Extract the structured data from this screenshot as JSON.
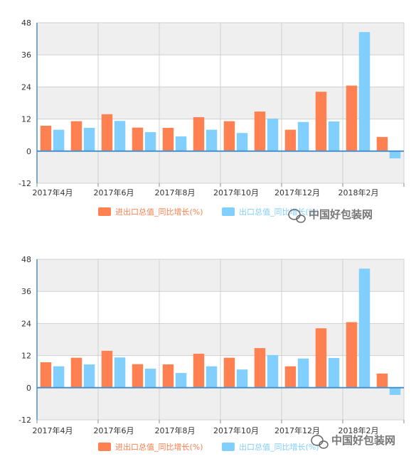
{
  "colors": {
    "import_export": "#FF8050",
    "export": "#80CFFF",
    "plot_bg_band": "#EFEFEF",
    "grid": "#D0D0D0",
    "axis": "#4A90C8"
  },
  "watermark": {
    "icon": "wechat-icon",
    "text": "中国好包装网"
  },
  "chart_data": [
    {
      "type": "bar",
      "categories": [
        "2017年4月",
        "2017年5月",
        "2017年6月",
        "2017年7月",
        "2017年8月",
        "2017年9月",
        "2017年10月",
        "2017年11月",
        "2017年12月",
        "2018年1月",
        "2018年2月",
        "2018年3月"
      ],
      "x_tick_labels": [
        "2017年4月",
        "2017年6月",
        "2017年8月",
        "2017年10月",
        "2017年12月",
        "2018年2月"
      ],
      "y_ticks": [
        "48",
        "36",
        "24",
        "12",
        "0",
        "-12"
      ],
      "ylim": [
        -12,
        48
      ],
      "grid": true,
      "legend_position": "bottom",
      "series": [
        {
          "name": "进出口总值_同比增长(%)",
          "color": "#FF8050",
          "values": [
            9.5,
            11.2,
            13.8,
            8.8,
            8.7,
            12.7,
            11.2,
            14.8,
            8.0,
            22.2,
            24.5,
            5.3
          ]
        },
        {
          "name": "出口总值_同比增长(%)",
          "color": "#80CFFF",
          "values": [
            8.0,
            8.7,
            11.3,
            7.1,
            5.5,
            8.0,
            6.8,
            12.2,
            10.9,
            11.1,
            44.5,
            -2.7
          ]
        }
      ]
    },
    {
      "type": "bar",
      "categories": [
        "2017年4月",
        "2017年5月",
        "2017年6月",
        "2017年7月",
        "2017年8月",
        "2017年9月",
        "2017年10月",
        "2017年11月",
        "2017年12月",
        "2018年1月",
        "2018年2月",
        "2018年3月"
      ],
      "x_tick_labels": [
        "2017年4月",
        "2017年6月",
        "2017年8月",
        "2017年10月",
        "2017年12月",
        "2018年2月"
      ],
      "y_ticks": [
        "48",
        "36",
        "24",
        "12",
        "0",
        "-12"
      ],
      "ylim": [
        -12,
        48
      ],
      "grid": true,
      "legend_position": "bottom",
      "series": [
        {
          "name": "进出口总值_同比增长(%)",
          "color": "#FF8050",
          "values": [
            9.5,
            11.2,
            13.8,
            8.8,
            8.7,
            12.7,
            11.2,
            14.8,
            8.0,
            22.2,
            24.5,
            5.3
          ]
        },
        {
          "name": "出口总值_同比增长(%)",
          "color": "#80CFFF",
          "values": [
            8.0,
            8.7,
            11.3,
            7.1,
            5.5,
            8.0,
            6.8,
            12.2,
            10.9,
            11.1,
            44.5,
            -2.7
          ]
        }
      ]
    }
  ]
}
